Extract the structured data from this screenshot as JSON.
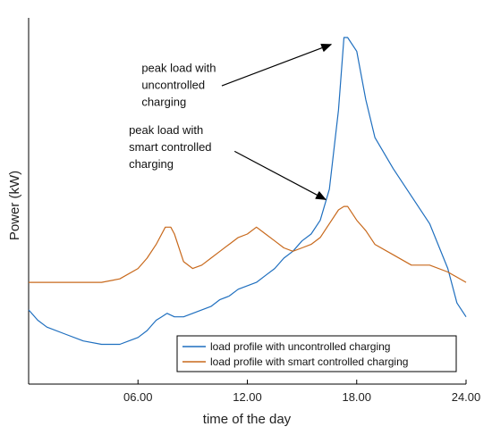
{
  "chart_data": {
    "type": "line",
    "title": "",
    "xlabel": "time of the day",
    "ylabel": "Power (kW)",
    "xlim": [
      0,
      24
    ],
    "ylim": [
      0,
      100
    ],
    "x_ticks": [
      6,
      12,
      18,
      24
    ],
    "x_tick_labels": [
      "06.00",
      "12.00",
      "18.00",
      "24.00"
    ],
    "y_tick_labels_shown": false,
    "grid": false,
    "legend_position": "bottom-right",
    "series": [
      {
        "name": "load profile with uncontrolled charging",
        "color": "#1f6fbf",
        "x": [
          0,
          0.5,
          1,
          2,
          3,
          4,
          5,
          6,
          6.5,
          7,
          7.3,
          7.6,
          8,
          8.5,
          9,
          10,
          10.5,
          11,
          11.5,
          12,
          12.5,
          13,
          13.5,
          14,
          14.5,
          15,
          15.5,
          16,
          16.5,
          17,
          17.3,
          17.5,
          18,
          18.5,
          19,
          20,
          21,
          22,
          23,
          23.5,
          24
        ],
        "values": [
          21,
          18,
          16,
          14,
          12,
          11,
          11,
          13,
          15,
          18,
          19,
          20,
          19,
          19,
          20,
          22,
          24,
          25,
          27,
          28,
          29,
          31,
          33,
          36,
          38,
          41,
          43,
          47,
          56,
          79,
          100,
          100,
          96,
          82,
          71,
          62,
          54,
          46,
          33,
          23,
          19
        ],
        "points": [
          [
            0,
            21
          ],
          [
            0.5,
            18
          ],
          [
            1,
            16
          ],
          [
            2,
            14
          ],
          [
            3,
            12
          ],
          [
            4,
            11
          ],
          [
            5,
            11
          ],
          [
            6,
            13
          ],
          [
            6.5,
            15
          ],
          [
            7,
            18
          ],
          [
            7.3,
            19
          ],
          [
            7.6,
            20
          ],
          [
            8,
            19
          ],
          [
            8.5,
            19
          ],
          [
            9,
            20
          ],
          [
            10,
            22
          ],
          [
            10.5,
            24
          ],
          [
            11,
            25
          ],
          [
            11.5,
            27
          ],
          [
            12,
            28
          ],
          [
            12.5,
            29
          ],
          [
            13,
            31
          ],
          [
            13.5,
            33
          ],
          [
            14,
            36
          ],
          [
            14.5,
            38
          ],
          [
            15,
            41
          ],
          [
            15.5,
            43
          ],
          [
            16,
            47
          ],
          [
            16.5,
            56
          ],
          [
            17,
            79
          ],
          [
            17.3,
            100
          ],
          [
            17.5,
            100
          ],
          [
            18,
            96
          ],
          [
            18.5,
            82
          ],
          [
            19,
            71
          ],
          [
            20,
            62
          ],
          [
            21,
            54
          ],
          [
            22,
            46
          ],
          [
            23,
            33
          ],
          [
            23.5,
            23
          ],
          [
            24,
            19
          ]
        ]
      },
      {
        "name": "load profile with smart controlled charging",
        "color": "#c8691c",
        "x": [
          0,
          1,
          2,
          3,
          4,
          5,
          6,
          6.5,
          7,
          7.5,
          7.8,
          8,
          8.5,
          9,
          9.5,
          10,
          10.5,
          11,
          11.5,
          12,
          12.5,
          13,
          13.5,
          14,
          14.5,
          15,
          15.5,
          16,
          16.5,
          17,
          17.3,
          17.5,
          18,
          18.5,
          19,
          20,
          21,
          22,
          23,
          24
        ],
        "values": [
          29,
          29,
          29,
          29,
          29,
          30,
          33,
          36,
          40,
          45,
          45,
          43,
          35,
          33,
          34,
          36,
          38,
          40,
          42,
          43,
          45,
          43,
          41,
          39,
          38,
          39,
          40,
          42,
          46,
          50,
          51,
          51,
          47,
          44,
          40,
          37,
          34,
          34,
          32,
          29
        ],
        "points": [
          [
            0,
            29
          ],
          [
            1,
            29
          ],
          [
            2,
            29
          ],
          [
            3,
            29
          ],
          [
            4,
            29
          ],
          [
            5,
            30
          ],
          [
            6,
            33
          ],
          [
            6.5,
            36
          ],
          [
            7,
            40
          ],
          [
            7.5,
            45
          ],
          [
            7.8,
            45
          ],
          [
            8,
            43
          ],
          [
            8.5,
            35
          ],
          [
            9,
            33
          ],
          [
            9.5,
            34
          ],
          [
            10,
            36
          ],
          [
            10.5,
            38
          ],
          [
            11,
            40
          ],
          [
            11.5,
            42
          ],
          [
            12,
            43
          ],
          [
            12.5,
            45
          ],
          [
            13,
            43
          ],
          [
            13.5,
            41
          ],
          [
            14,
            39
          ],
          [
            14.5,
            38
          ],
          [
            15,
            39
          ],
          [
            15.5,
            40
          ],
          [
            16,
            42
          ],
          [
            16.5,
            46
          ],
          [
            17,
            50
          ],
          [
            17.3,
            51
          ],
          [
            17.5,
            51
          ],
          [
            18,
            47
          ],
          [
            18.5,
            44
          ],
          [
            19,
            40
          ],
          [
            20,
            37
          ],
          [
            21,
            34
          ],
          [
            22,
            34
          ],
          [
            23,
            32
          ],
          [
            24,
            29
          ]
        ]
      }
    ],
    "annotations": [
      {
        "lines": [
          "peak load with",
          "uncontrolled",
          "charging"
        ],
        "text_anchor": [
          6.2,
          90
        ],
        "arrow_from": [
          10.6,
          86
        ],
        "arrow_to": [
          16.6,
          98
        ]
      },
      {
        "lines": [
          "peak load with",
          "smart controlled",
          "charging"
        ],
        "text_anchor": [
          5.5,
          72
        ],
        "arrow_from": [
          11.3,
          67
        ],
        "arrow_to": [
          16.3,
          53
        ]
      }
    ]
  }
}
